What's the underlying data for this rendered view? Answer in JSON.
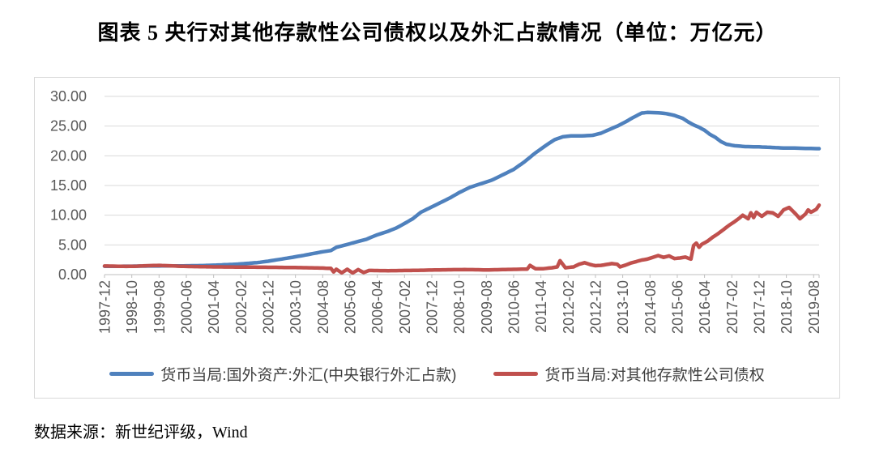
{
  "page": {
    "title": "图表 5  央行对其他存款性公司债权以及外汇占款情况（单位：万亿元）",
    "source": "数据来源：新世纪评级，Wind"
  },
  "colors": {
    "blue": "#4f81bd",
    "red": "#c0504d",
    "grid": "#d9d9d9",
    "axis": "#bfbfbf",
    "tick_text": "#595959",
    "legend_text": "#3f3f3f",
    "frame_border": "#d9d9d9"
  },
  "chart_data": {
    "type": "line",
    "title": "央行对其他存款性公司债权以及外汇占款情况",
    "unit": "万亿元",
    "grid": "horizontal",
    "legend_position": "bottom",
    "y_axis": {
      "min": 0,
      "max": 30,
      "step": 5,
      "decimals": 2
    },
    "x_axis": {
      "tick_labels": [
        "1997-12",
        "1998-10",
        "1999-08",
        "2000-06",
        "2001-04",
        "2002-02",
        "2002-12",
        "2003-10",
        "2004-08",
        "2005-06",
        "2006-04",
        "2007-02",
        "2007-12",
        "2008-10",
        "2009-08",
        "2010-06",
        "2011-04",
        "2012-02",
        "2012-12",
        "2013-10",
        "2014-08",
        "2015-06",
        "2016-04",
        "2017-02",
        "2017-12",
        "2018-10",
        "2019-08"
      ],
      "months_per_tick": 10,
      "total_months": 262,
      "start_label": "1997-12",
      "end_label": "2019-08"
    },
    "series": [
      {
        "name": "货币当局:国外资产:外汇(中央银行外汇占款)",
        "color_key": "blue",
        "keypoints": [
          [
            0,
            1.4
          ],
          [
            6,
            1.41
          ],
          [
            12,
            1.43
          ],
          [
            20,
            1.45
          ],
          [
            30,
            1.48
          ],
          [
            36,
            1.52
          ],
          [
            40,
            1.58
          ],
          [
            44,
            1.66
          ],
          [
            48,
            1.74
          ],
          [
            52,
            1.88
          ],
          [
            56,
            2.02
          ],
          [
            60,
            2.25
          ],
          [
            64,
            2.55
          ],
          [
            68,
            2.85
          ],
          [
            72,
            3.15
          ],
          [
            76,
            3.5
          ],
          [
            80,
            3.85
          ],
          [
            83,
            4.05
          ],
          [
            85,
            4.6
          ],
          [
            88,
            4.95
          ],
          [
            92,
            5.45
          ],
          [
            96,
            5.95
          ],
          [
            100,
            6.7
          ],
          [
            104,
            7.3
          ],
          [
            107,
            7.85
          ],
          [
            110,
            8.6
          ],
          [
            113,
            9.4
          ],
          [
            116,
            10.5
          ],
          [
            120,
            11.4
          ],
          [
            124,
            12.3
          ],
          [
            127,
            13.0
          ],
          [
            130,
            13.8
          ],
          [
            134,
            14.7
          ],
          [
            138,
            15.3
          ],
          [
            142,
            15.9
          ],
          [
            146,
            16.8
          ],
          [
            150,
            17.7
          ],
          [
            154,
            19.0
          ],
          [
            158,
            20.5
          ],
          [
            162,
            21.8
          ],
          [
            165,
            22.7
          ],
          [
            168,
            23.2
          ],
          [
            171,
            23.35
          ],
          [
            175,
            23.35
          ],
          [
            179,
            23.45
          ],
          [
            182,
            23.8
          ],
          [
            185,
            24.4
          ],
          [
            188,
            25.0
          ],
          [
            191,
            25.7
          ],
          [
            194,
            26.5
          ],
          [
            197,
            27.2
          ],
          [
            199,
            27.3
          ],
          [
            203,
            27.25
          ],
          [
            206,
            27.1
          ],
          [
            209,
            26.8
          ],
          [
            212,
            26.3
          ],
          [
            214,
            25.7
          ],
          [
            216,
            25.2
          ],
          [
            218,
            24.8
          ],
          [
            220,
            24.3
          ],
          [
            222,
            23.6
          ],
          [
            224,
            23.1
          ],
          [
            226,
            22.4
          ],
          [
            228,
            21.95
          ],
          [
            231,
            21.7
          ],
          [
            235,
            21.55
          ],
          [
            240,
            21.5
          ],
          [
            245,
            21.4
          ],
          [
            249,
            21.3
          ],
          [
            253,
            21.3
          ],
          [
            257,
            21.25
          ],
          [
            262,
            21.2
          ]
        ]
      },
      {
        "name": "货币当局:对其他存款性公司债权",
        "color_key": "red",
        "keypoints": [
          [
            0,
            1.45
          ],
          [
            4,
            1.42
          ],
          [
            8,
            1.38
          ],
          [
            12,
            1.42
          ],
          [
            16,
            1.5
          ],
          [
            20,
            1.55
          ],
          [
            24,
            1.48
          ],
          [
            28,
            1.4
          ],
          [
            32,
            1.36
          ],
          [
            36,
            1.33
          ],
          [
            40,
            1.3
          ],
          [
            46,
            1.28
          ],
          [
            52,
            1.26
          ],
          [
            58,
            1.24
          ],
          [
            64,
            1.22
          ],
          [
            70,
            1.18
          ],
          [
            76,
            1.14
          ],
          [
            80,
            1.1
          ],
          [
            83,
            1.05
          ],
          [
            84,
            0.45
          ],
          [
            85,
            0.9
          ],
          [
            87,
            0.3
          ],
          [
            89,
            0.9
          ],
          [
            91,
            0.28
          ],
          [
            93,
            0.85
          ],
          [
            95,
            0.35
          ],
          [
            97,
            0.7
          ],
          [
            100,
            0.68
          ],
          [
            104,
            0.66
          ],
          [
            108,
            0.68
          ],
          [
            112,
            0.7
          ],
          [
            116,
            0.73
          ],
          [
            120,
            0.77
          ],
          [
            124,
            0.8
          ],
          [
            128,
            0.83
          ],
          [
            132,
            0.84
          ],
          [
            136,
            0.82
          ],
          [
            140,
            0.79
          ],
          [
            144,
            0.82
          ],
          [
            148,
            0.87
          ],
          [
            152,
            0.9
          ],
          [
            155,
            0.93
          ],
          [
            156,
            1.55
          ],
          [
            158,
            1.0
          ],
          [
            161,
            1.0
          ],
          [
            164,
            1.15
          ],
          [
            166,
            1.3
          ],
          [
            167,
            2.35
          ],
          [
            169,
            1.15
          ],
          [
            172,
            1.3
          ],
          [
            174,
            1.75
          ],
          [
            176,
            2.0
          ],
          [
            178,
            1.7
          ],
          [
            180,
            1.5
          ],
          [
            182,
            1.55
          ],
          [
            184,
            1.7
          ],
          [
            186,
            1.85
          ],
          [
            188,
            1.75
          ],
          [
            189,
            1.3
          ],
          [
            191,
            1.6
          ],
          [
            193,
            1.95
          ],
          [
            195,
            2.2
          ],
          [
            197,
            2.45
          ],
          [
            199,
            2.6
          ],
          [
            201,
            2.9
          ],
          [
            203,
            3.2
          ],
          [
            205,
            2.9
          ],
          [
            207,
            3.15
          ],
          [
            209,
            2.7
          ],
          [
            211,
            2.8
          ],
          [
            213,
            2.95
          ],
          [
            215,
            2.6
          ],
          [
            216,
            4.9
          ],
          [
            217,
            5.3
          ],
          [
            218,
            4.6
          ],
          [
            219,
            5.1
          ],
          [
            221,
            5.6
          ],
          [
            223,
            6.3
          ],
          [
            225,
            6.9
          ],
          [
            227,
            7.6
          ],
          [
            229,
            8.3
          ],
          [
            231,
            8.9
          ],
          [
            233,
            9.6
          ],
          [
            234,
            10.0
          ],
          [
            236,
            9.4
          ],
          [
            237,
            10.4
          ],
          [
            238,
            9.6
          ],
          [
            239,
            10.5
          ],
          [
            241,
            9.8
          ],
          [
            243,
            10.5
          ],
          [
            245,
            10.4
          ],
          [
            247,
            9.8
          ],
          [
            249,
            10.9
          ],
          [
            251,
            11.3
          ],
          [
            253,
            10.4
          ],
          [
            255,
            9.4
          ],
          [
            257,
            10.2
          ],
          [
            258,
            10.9
          ],
          [
            259,
            10.5
          ],
          [
            261,
            11.0
          ],
          [
            262,
            11.7
          ]
        ]
      }
    ]
  }
}
